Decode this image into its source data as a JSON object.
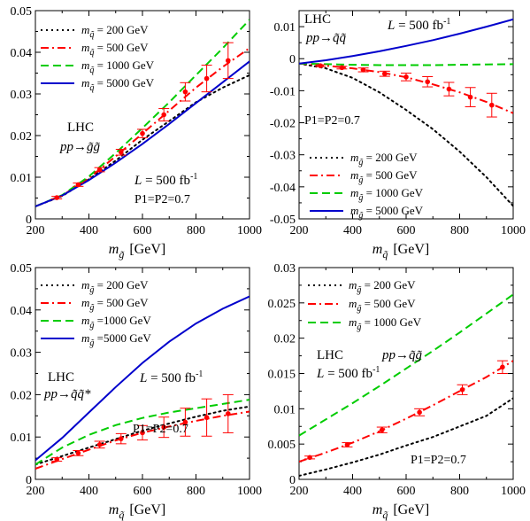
{
  "chart_data": [
    {
      "type": "line",
      "panel": "top-left",
      "xlabel_main": "m",
      "xlabel_sub": "g̃",
      "xlabel_unit": "[GeV]",
      "xlim": [
        200,
        1000
      ],
      "ylim": [
        0,
        0.05
      ],
      "xticks": [
        "200",
        "400",
        "600",
        "800",
        "1000"
      ],
      "yticks": [
        "0",
        "0.01",
        "0.02",
        "0.03",
        "0.04",
        "0.05"
      ],
      "legend_position": "top-left",
      "annotations": {
        "process_lines": [
          "LHC",
          "pp→g̃g̃"
        ],
        "luminosity": "L = 500 fb",
        "lumi_exp": "-1",
        "polarization": "P1=P2=0.7"
      },
      "series": [
        {
          "name": "m = 200 GeV",
          "sub": "q̃",
          "color": "#000000",
          "dash": "2,4",
          "points": [
            [
              200,
              0.003
            ],
            [
              300,
              0.0055
            ],
            [
              400,
              0.0095
            ],
            [
              500,
              0.014
            ],
            [
              600,
              0.019
            ],
            [
              700,
              0.0235
            ],
            [
              800,
              0.028
            ],
            [
              900,
              0.0315
            ],
            [
              1000,
              0.0345
            ]
          ]
        },
        {
          "name": "m = 500 GeV",
          "sub": "q̃",
          "color": "#ff0000",
          "dash": "9,4,2,4",
          "points": [
            [
              200,
              0.003
            ],
            [
              300,
              0.0056
            ],
            [
              400,
              0.0098
            ],
            [
              500,
              0.015
            ],
            [
              600,
              0.0205
            ],
            [
              700,
              0.026
            ],
            [
              800,
              0.0315
            ],
            [
              900,
              0.0365
            ],
            [
              1000,
              0.041
            ]
          ]
        },
        {
          "name": "m = 1000 GeV",
          "sub": "q̃",
          "color": "#00cc00",
          "dash": "9,5",
          "points": [
            [
              200,
              0.003
            ],
            [
              300,
              0.0057
            ],
            [
              400,
              0.0102
            ],
            [
              500,
              0.0158
            ],
            [
              600,
              0.0218
            ],
            [
              700,
              0.028
            ],
            [
              800,
              0.0345
            ],
            [
              900,
              0.041
            ],
            [
              1000,
              0.0478
            ]
          ]
        },
        {
          "name": "m = 5000 GeV",
          "sub": "q̃",
          "color": "#0000cc",
          "dash": "",
          "points": [
            [
              200,
              0.003
            ],
            [
              300,
              0.0056
            ],
            [
              400,
              0.0093
            ],
            [
              500,
              0.0135
            ],
            [
              600,
              0.018
            ],
            [
              700,
              0.0228
            ],
            [
              800,
              0.0278
            ],
            [
              900,
              0.0328
            ],
            [
              1000,
              0.0378
            ]
          ]
        }
      ],
      "error_points": [
        {
          "x": 280,
          "y": 0.0051,
          "err": 0.0003
        },
        {
          "x": 360,
          "y": 0.0082,
          "err": 0.0004
        },
        {
          "x": 440,
          "y": 0.0118,
          "err": 0.0005
        },
        {
          "x": 520,
          "y": 0.016,
          "err": 0.0007
        },
        {
          "x": 600,
          "y": 0.0205,
          "err": 0.001
        },
        {
          "x": 680,
          "y": 0.025,
          "err": 0.0015
        },
        {
          "x": 760,
          "y": 0.0305,
          "err": 0.0022
        },
        {
          "x": 840,
          "y": 0.0337,
          "err": 0.0032
        },
        {
          "x": 920,
          "y": 0.038,
          "err": 0.0043
        }
      ]
    },
    {
      "type": "line",
      "panel": "top-right",
      "xlabel_main": "m",
      "xlabel_sub": "q̃",
      "xlabel_unit": "[GeV]",
      "xlim": [
        200,
        1000
      ],
      "ylim": [
        -0.05,
        0.015
      ],
      "xticks": [
        "200",
        "400",
        "600",
        "800",
        "1000"
      ],
      "yticks": [
        "-0.05",
        "-0.04",
        "-0.03",
        "-0.02",
        "-0.01",
        "0",
        "0.01"
      ],
      "legend_position": "bottom-left",
      "annotations": {
        "process_lines": [
          "LHC",
          "pp→q̃q̃"
        ],
        "luminosity": "L = 500 fb",
        "lumi_exp": "-1",
        "polarization": "P1=P2=0.7"
      },
      "series": [
        {
          "name": "m = 200 GeV",
          "sub": "g̃",
          "color": "#000000",
          "dash": "2,4",
          "points": [
            [
              200,
              -0.0015
            ],
            [
              300,
              -0.003
            ],
            [
              400,
              -0.006
            ],
            [
              500,
              -0.0105
            ],
            [
              600,
              -0.016
            ],
            [
              700,
              -0.022
            ],
            [
              800,
              -0.029
            ],
            [
              900,
              -0.037
            ],
            [
              1000,
              -0.046
            ]
          ]
        },
        {
          "name": "m = 500 GeV",
          "sub": "g̃",
          "color": "#ff0000",
          "dash": "9,4,2,4",
          "points": [
            [
              200,
              -0.0015
            ],
            [
              300,
              -0.0022
            ],
            [
              400,
              -0.003
            ],
            [
              500,
              -0.0042
            ],
            [
              600,
              -0.0058
            ],
            [
              700,
              -0.008
            ],
            [
              800,
              -0.0105
            ],
            [
              900,
              -0.0135
            ],
            [
              1000,
              -0.017
            ]
          ]
        },
        {
          "name": "m = 1000 GeV",
          "sub": "g̃",
          "color": "#00cc00",
          "dash": "9,5",
          "points": [
            [
              200,
              -0.0015
            ],
            [
              300,
              -0.0017
            ],
            [
              400,
              -0.0019
            ],
            [
              500,
              -0.002
            ],
            [
              600,
              -0.002
            ],
            [
              700,
              -0.002
            ],
            [
              800,
              -0.0019
            ],
            [
              900,
              -0.0018
            ],
            [
              1000,
              -0.0017
            ]
          ]
        },
        {
          "name": "m = 5000 GeV",
          "sub": "g̃",
          "color": "#0000cc",
          "dash": "",
          "points": [
            [
              200,
              -0.0015
            ],
            [
              300,
              -0.0005
            ],
            [
              400,
              0.0008
            ],
            [
              500,
              0.0023
            ],
            [
              600,
              0.004
            ],
            [
              700,
              0.0058
            ],
            [
              800,
              0.0078
            ],
            [
              900,
              0.01
            ],
            [
              1000,
              0.0123
            ]
          ]
        }
      ],
      "error_points": [
        {
          "x": 280,
          "y": -0.0022,
          "err": 0.0003
        },
        {
          "x": 360,
          "y": -0.0028,
          "err": 0.0004
        },
        {
          "x": 440,
          "y": -0.0035,
          "err": 0.0006
        },
        {
          "x": 520,
          "y": -0.0047,
          "err": 0.0008
        },
        {
          "x": 600,
          "y": -0.0057,
          "err": 0.0012
        },
        {
          "x": 680,
          "y": -0.0072,
          "err": 0.0016
        },
        {
          "x": 760,
          "y": -0.0095,
          "err": 0.0021
        },
        {
          "x": 840,
          "y": -0.012,
          "err": 0.003
        },
        {
          "x": 920,
          "y": -0.0145,
          "err": 0.0037
        }
      ]
    },
    {
      "type": "line",
      "panel": "bottom-left",
      "xlabel_main": "m",
      "xlabel_sub": "q̃",
      "xlabel_unit": "[GeV]",
      "xlim": [
        200,
        1000
      ],
      "ylim": [
        0,
        0.05
      ],
      "xticks": [
        "200",
        "400",
        "600",
        "800",
        "1000"
      ],
      "yticks": [
        "0",
        "0.01",
        "0.02",
        "0.03",
        "0.04",
        "0.05"
      ],
      "legend_position": "top-left",
      "annotations": {
        "process_lines": [
          "LHC",
          "pp→q̃q̃*"
        ],
        "luminosity": "L = 500 fb",
        "lumi_exp": "-1",
        "polarization": "P1=P2=0.7"
      },
      "series": [
        {
          "name": "m = 200 GeV",
          "sub": "g̃",
          "color": "#000000",
          "dash": "2,4",
          "points": [
            [
              200,
              0.0035
            ],
            [
              300,
              0.0055
            ],
            [
              400,
              0.0075
            ],
            [
              500,
              0.0095
            ],
            [
              600,
              0.0115
            ],
            [
              700,
              0.0132
            ],
            [
              800,
              0.0148
            ],
            [
              900,
              0.0162
            ],
            [
              1000,
              0.0172
            ]
          ]
        },
        {
          "name": "m = 500 GeV",
          "sub": "g̃",
          "color": "#ff0000",
          "dash": "9,4,2,4",
          "points": [
            [
              200,
              0.0025
            ],
            [
              300,
              0.0048
            ],
            [
              400,
              0.007
            ],
            [
              500,
              0.0092
            ],
            [
              600,
              0.011
            ],
            [
              700,
              0.0125
            ],
            [
              800,
              0.0138
            ],
            [
              900,
              0.015
            ],
            [
              1000,
              0.016
            ]
          ]
        },
        {
          "name": "m =1000 GeV",
          "sub": "g̃",
          "color": "#00cc00",
          "dash": "9,5",
          "points": [
            [
              200,
              0.0035
            ],
            [
              300,
              0.0075
            ],
            [
              400,
              0.0105
            ],
            [
              500,
              0.0128
            ],
            [
              600,
              0.0145
            ],
            [
              700,
              0.0158
            ],
            [
              800,
              0.0168
            ],
            [
              900,
              0.0178
            ],
            [
              1000,
              0.0188
            ]
          ]
        },
        {
          "name": "m =5000 GeV",
          "sub": "g̃",
          "color": "#0000cc",
          "dash": "",
          "points": [
            [
              200,
              0.0045
            ],
            [
              300,
              0.0098
            ],
            [
              400,
              0.0158
            ],
            [
              500,
              0.0218
            ],
            [
              600,
              0.0275
            ],
            [
              700,
              0.0325
            ],
            [
              800,
              0.0368
            ],
            [
              900,
              0.0403
            ],
            [
              1000,
              0.0432
            ]
          ]
        }
      ],
      "error_points": [
        {
          "x": 280,
          "y": 0.0047,
          "err": 0.0004
        },
        {
          "x": 360,
          "y": 0.0062,
          "err": 0.0006
        },
        {
          "x": 440,
          "y": 0.0082,
          "err": 0.0008
        },
        {
          "x": 520,
          "y": 0.0096,
          "err": 0.0012
        },
        {
          "x": 600,
          "y": 0.011,
          "err": 0.0017
        },
        {
          "x": 680,
          "y": 0.0123,
          "err": 0.0024
        },
        {
          "x": 760,
          "y": 0.0135,
          "err": 0.0033
        },
        {
          "x": 840,
          "y": 0.0146,
          "err": 0.0044
        },
        {
          "x": 920,
          "y": 0.0155,
          "err": 0.0045
        }
      ]
    },
    {
      "type": "line",
      "panel": "bottom-right",
      "xlabel_main": "m",
      "xlabel_sub": "q̃",
      "xlabel_unit": "[GeV]",
      "xlim": [
        200,
        1000
      ],
      "ylim": [
        0,
        0.03
      ],
      "xticks": [
        "200",
        "400",
        "600",
        "800",
        "1000"
      ],
      "yticks": [
        "0",
        "0.005",
        "0.01",
        "0.015",
        "0.02",
        "0.025",
        "0.03"
      ],
      "legend_position": "top-left",
      "annotations": {
        "process_lines": [
          "LHC",
          "pp→q̃g̃"
        ],
        "luminosity": "L = 500 fb",
        "lumi_exp": "-1",
        "polarization": "P1=P2=0.7"
      },
      "series": [
        {
          "name": "m = 200 GeV",
          "sub": "g̃",
          "color": "#000000",
          "dash": "2,4",
          "points": [
            [
              200,
              0.0005
            ],
            [
              300,
              0.0014
            ],
            [
              400,
              0.0024
            ],
            [
              500,
              0.0035
            ],
            [
              600,
              0.0048
            ],
            [
              700,
              0.006
            ],
            [
              800,
              0.0075
            ],
            [
              900,
              0.009
            ],
            [
              1000,
              0.0115
            ]
          ]
        },
        {
          "name": "m = 500 GeV",
          "sub": "g̃",
          "color": "#ff0000",
          "dash": "9,4,2,4",
          "points": [
            [
              200,
              0.0025
            ],
            [
              300,
              0.0038
            ],
            [
              400,
              0.0052
            ],
            [
              500,
              0.0068
            ],
            [
              600,
              0.0086
            ],
            [
              700,
              0.0105
            ],
            [
              800,
              0.0125
            ],
            [
              900,
              0.0145
            ],
            [
              1000,
              0.0168
            ]
          ]
        },
        {
          "name": "m = 1000 GeV",
          "sub": "g̃",
          "color": "#00cc00",
          "dash": "9,5",
          "points": [
            [
              200,
              0.0062
            ],
            [
              300,
              0.0085
            ],
            [
              400,
              0.0108
            ],
            [
              500,
              0.0132
            ],
            [
              600,
              0.0157
            ],
            [
              700,
              0.0182
            ],
            [
              800,
              0.0208
            ],
            [
              900,
              0.0235
            ],
            [
              1000,
              0.0262
            ]
          ]
        }
      ],
      "error_points": [
        {
          "x": 240,
          "y": 0.0031,
          "err": 0.0002
        },
        {
          "x": 380,
          "y": 0.0049,
          "err": 0.0003
        },
        {
          "x": 510,
          "y": 0.007,
          "err": 0.0004
        },
        {
          "x": 650,
          "y": 0.0095,
          "err": 0.0005
        },
        {
          "x": 810,
          "y": 0.0127,
          "err": 0.0007
        },
        {
          "x": 960,
          "y": 0.0159,
          "err": 0.0009
        }
      ]
    }
  ]
}
